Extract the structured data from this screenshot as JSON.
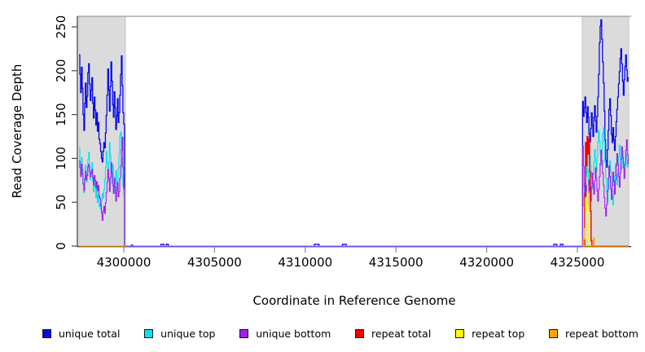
{
  "chart_data": {
    "type": "line",
    "title": "",
    "xlabel": "Coordinate in Reference Genome",
    "ylabel": "Read Coverage Depth",
    "grid": false,
    "legend_position": "bottom",
    "x_range": [
      4297440,
      4327960
    ],
    "y_range": [
      0,
      262
    ],
    "x_ticks": [
      {
        "value": 4300000,
        "label": "4300000"
      },
      {
        "value": 4305000,
        "label": "4305000"
      },
      {
        "value": 4310000,
        "label": "4310000"
      },
      {
        "value": 4315000,
        "label": "4315000"
      },
      {
        "value": 4320000,
        "label": "4320000"
      },
      {
        "value": 4325000,
        "label": "4325000"
      }
    ],
    "y_ticks": [
      {
        "value": 0,
        "label": "0"
      },
      {
        "value": 50,
        "label": "50"
      },
      {
        "value": 100,
        "label": "100"
      },
      {
        "value": 150,
        "label": "150"
      },
      {
        "value": 200,
        "label": "200"
      },
      {
        "value": 250,
        "label": "250"
      }
    ],
    "highlight_regions": [
      {
        "start": 4297530,
        "end": 4300090,
        "fill": "#DBDBDB",
        "border": "#C6C6C6"
      },
      {
        "start": 4325270,
        "end": 4327830,
        "fill": "#DBDBDB",
        "border": "#C6C6C6"
      }
    ],
    "series": [
      {
        "name": "unique total",
        "color": "#0A0AE8",
        "width": 1.3,
        "y_offset": 0,
        "paths": [
          [
            {
              "x0": 4297530,
              "dx": 44,
              "v": [
                218,
                196,
                175,
                204,
                180,
                150,
                132,
                163,
                186,
                158,
                171,
                198,
                208,
                185,
                166,
                178,
                192,
                163,
                146,
                170,
                155,
                138,
                152,
                131,
                141,
                122,
                117,
                108,
                100,
                96,
                108,
                118,
                112,
                129,
                149,
                172,
                202,
                178,
                154,
                182,
                210,
                188,
                161,
                147,
                176,
                158,
                133,
                149,
                168,
                141,
                152,
                172,
                196,
                217,
                183,
                152,
                139,
                0
              ]
            },
            {
              "x0": 4302050,
              "dx": 150,
              "v": [
                2
              ]
            },
            {
              "x0": 4302200,
              "dx": 100,
              "v": [
                0
              ]
            },
            {
              "x0": 4302330,
              "dx": 120,
              "v": [
                2
              ]
            },
            {
              "x0": 4302450,
              "dx": 10,
              "v": [
                0
              ]
            },
            {
              "x0": 4310500,
              "dx": 260,
              "v": [
                2
              ]
            },
            {
              "x0": 4310760,
              "dx": 10,
              "v": [
                0
              ]
            },
            {
              "x0": 4312050,
              "dx": 210,
              "v": [
                2
              ]
            },
            {
              "x0": 4312260,
              "dx": 10,
              "v": [
                0
              ]
            },
            {
              "x0": 4323700,
              "dx": 160,
              "v": [
                2
              ]
            },
            {
              "x0": 4323860,
              "dx": 10,
              "v": [
                0
              ]
            },
            {
              "x0": 4324060,
              "dx": 140,
              "v": [
                2
              ]
            },
            {
              "x0": 4324200,
              "dx": 10,
              "v": [
                0
              ]
            },
            {
              "x0": 4325280,
              "dx": 44,
              "v": [
                165,
                148,
                158,
                170,
                152,
                141,
                159,
                147,
                128,
                119,
                134,
                152,
                138,
                125,
                147,
                160,
                143,
                130,
                148,
                170,
                196,
                232,
                251,
                258,
                236,
                210,
                186,
                154,
                121,
                98,
                90,
                110,
                132,
                156,
                168,
                149,
                127,
                118,
                135,
                121,
                109,
                125,
                142,
                156,
                170,
                185,
                199,
                214,
                225,
                208,
                188,
                172,
                190,
                205,
                218,
                201,
                188,
                192
              ]
            }
          ]
        ]
      },
      {
        "name": "unique top",
        "color": "#00E5EE",
        "width": 1.1,
        "y_offset": 0,
        "paths": [
          [
            {
              "x0": 4297530,
              "dx": 44,
              "v": [
                112,
                96,
                84,
                101,
                88,
                70,
                61,
                78,
                92,
                73,
                82,
                99,
                107,
                90,
                76,
                85,
                95,
                74,
                62,
                80,
                68,
                55,
                66,
                50,
                58,
                45,
                48,
                42,
                52,
                60,
                55,
                64,
                76,
                90,
                108,
                95,
                78,
                96,
                118,
                103,
                84,
                72,
                93,
                79,
                60,
                71,
                86,
                65,
                74,
                89,
                105,
                126,
                130,
                101,
                80,
                69,
                58,
                0
              ]
            },
            {
              "x0": 4325280,
              "dx": 44,
              "v": [
                45,
                58,
                72,
                64,
                80,
                95,
                84,
                70,
                88,
                103,
                92,
                78,
                65,
                82,
                96,
                110,
                98,
                85,
                101,
                118,
                132,
                120,
                105,
                92,
                110,
                128,
                135,
                118,
                96,
                78,
                62,
                50,
                66,
                83,
                97,
                86,
                72,
                58,
                47,
                63,
                80,
                94,
                82,
                70,
                88,
                102,
                115,
                100,
                87,
                95,
                108,
                96,
                84,
                92,
                104,
                98,
                90,
                100
              ]
            }
          ]
        ]
      },
      {
        "name": "unique bottom",
        "color": "#A020F0",
        "width": 1.1,
        "y_offset": 0.8,
        "paths": [
          [
            {
              "x0": 4297530,
              "dx": 44,
              "v": [
                98,
                90,
                80,
                94,
                83,
                72,
                64,
                77,
                86,
                76,
                81,
                91,
                94,
                86,
                80,
                84,
                88,
                79,
                70,
                81,
                76,
                67,
                74,
                64,
                70,
                58,
                55,
                48,
                39,
                30,
                41,
                46,
                38,
                50,
                62,
                74,
                88,
                77,
                63,
                79,
                96,
                84,
                70,
                61,
                78,
                68,
                52,
                64,
                73,
                57,
                63,
                78,
                92,
                110,
                125,
                90,
                66,
                0
              ]
            },
            {
              "x0": 4300400,
              "dx": 110,
              "v": [
                2
              ]
            },
            {
              "x0": 4300510,
              "dx": 10,
              "v": [
                0
              ]
            },
            {
              "x0": 4325280,
              "dx": 44,
              "v": [
                115,
                92,
                68,
                54,
                70,
                58,
                47,
                62,
                76,
                64,
                52,
                68,
                84,
                72,
                60,
                75,
                90,
                78,
                64,
                52,
                66,
                80,
                95,
                110,
                98,
                84,
                70,
                56,
                44,
                35,
                48,
                64,
                78,
                92,
                80,
                66,
                54,
                70,
                85,
                74,
                60,
                76,
                92,
                106,
                94,
                80,
                68,
                84,
                100,
                114,
                102,
                90,
                78,
                94,
                110,
                122,
                105,
                95
              ]
            }
          ]
        ]
      },
      {
        "name": "repeat total",
        "color": "#F00000",
        "width": 1.4,
        "y_offset": 0,
        "paths": [
          [
            {
              "x0": 4325270,
              "dx": 44,
              "v": [
                0,
                0,
                0,
                60,
                118,
                92,
                125,
                105,
                122,
                85,
                40,
                6,
                0,
                0,
                0,
                0,
                0,
                0,
                0,
                0,
                0,
                0,
                0,
                0,
                0,
                0,
                0,
                0,
                0,
                0,
                0,
                0,
                0,
                0,
                0,
                0,
                0,
                0,
                0,
                0,
                0,
                0,
                0,
                0,
                0,
                0,
                0,
                0,
                0,
                0,
                0,
                0,
                0,
                0,
                0,
                0,
                0,
                0
              ]
            }
          ]
        ]
      },
      {
        "name": "repeat top",
        "color": "#FFFF00",
        "width": 1.1,
        "y_offset": 0,
        "paths": [
          [
            {
              "x0": 4325270,
              "dx": 44,
              "v": [
                0,
                0,
                8,
                20,
                55,
                40,
                62,
                30,
                0,
                0,
                0,
                0,
                0,
                0,
                0,
                0,
                0,
                0,
                0,
                0,
                0,
                0,
                0,
                0,
                0,
                0,
                0,
                0,
                0,
                0,
                0,
                0,
                0,
                0,
                0,
                0,
                0,
                0,
                0,
                0,
                0,
                0,
                0,
                0,
                0,
                0,
                0,
                0,
                0,
                0,
                0,
                0,
                0,
                0,
                0,
                0,
                0,
                0
              ]
            }
          ]
        ]
      },
      {
        "name": "repeat bottom",
        "color": "#FFA500",
        "width": 1.2,
        "y_offset": 0,
        "paths": [
          [
            {
              "x0": 4297530,
              "dx": 2552,
              "v": [
                0
              ]
            }
          ],
          [
            {
              "x0": 4325270,
              "dx": 44,
              "v": [
                0,
                9,
                0,
                0,
                0,
                0,
                0,
                0,
                0,
                0,
                0,
                0,
                0,
                0,
                9,
                0,
                0,
                0,
                0,
                0,
                0,
                0,
                0,
                0,
                0,
                0,
                0,
                0,
                0,
                0,
                0,
                0,
                0,
                0,
                0,
                0,
                0,
                0,
                0,
                0,
                0,
                0,
                0,
                0,
                0,
                0,
                0,
                0,
                0,
                0,
                0,
                0,
                0,
                0,
                0,
                0,
                0,
                0
              ]
            }
          ]
        ]
      }
    ]
  },
  "legend": {
    "items": [
      {
        "label": "unique total",
        "color": "#0A0AE8"
      },
      {
        "label": "unique top",
        "color": "#00E5EE"
      },
      {
        "label": "unique bottom",
        "color": "#A020F0"
      },
      {
        "label": "repeat total",
        "color": "#F00000"
      },
      {
        "label": "repeat top",
        "color": "#FFFF00"
      },
      {
        "label": "repeat bottom",
        "color": "#FFA500"
      }
    ]
  }
}
